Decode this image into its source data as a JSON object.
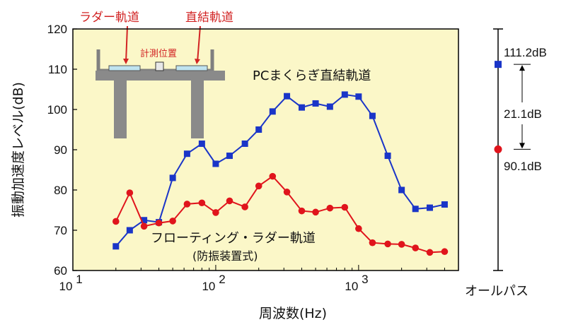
{
  "chart_data": {
    "type": "line",
    "xscale": "log",
    "xlim": [
      10,
      5000
    ],
    "ylim": [
      60,
      120
    ],
    "xlabel": "周波数(Hz)",
    "ylabel": "振動加速度レベル(dB)",
    "x_ticks": [
      {
        "value": 10,
        "base": "10",
        "exp": "1"
      },
      {
        "value": 100,
        "base": "10",
        "exp": "2"
      },
      {
        "value": 1000,
        "base": "10",
        "exp": "3"
      }
    ],
    "y_ticks": [
      60,
      70,
      80,
      90,
      100,
      110,
      120
    ],
    "series": [
      {
        "name": "PCまくらぎ直結軌道",
        "color": "#1a35c8",
        "marker": "square",
        "x": [
          20,
          25,
          31.5,
          40,
          50,
          63,
          80,
          100,
          125,
          160,
          200,
          250,
          315,
          400,
          500,
          630,
          800,
          1000,
          1250,
          1600,
          2000,
          2500,
          3150,
          4000
        ],
        "values": [
          66,
          70,
          72.5,
          72,
          83,
          89,
          91.5,
          86.5,
          88.5,
          91.5,
          95,
          99.5,
          103.3,
          100.5,
          101.5,
          100.7,
          103.7,
          103.2,
          98.4,
          88.5,
          80,
          75.3,
          75.6,
          76.4
        ]
      },
      {
        "name": "フローティング・ラダー軌道",
        "sublabel": "(防振装置式)",
        "color": "#e0141c",
        "marker": "circle",
        "x": [
          20,
          25,
          31.5,
          40,
          50,
          63,
          80,
          100,
          125,
          160,
          200,
          250,
          315,
          400,
          500,
          630,
          800,
          1000,
          1250,
          1600,
          2000,
          2500,
          3150,
          4000
        ],
        "values": [
          72.2,
          79.3,
          71,
          71.8,
          72.3,
          76.5,
          76.8,
          74.4,
          77.3,
          75.8,
          81,
          83.4,
          79.5,
          74.8,
          74.5,
          75.5,
          75.7,
          70.4,
          66.9,
          66.6,
          66.5,
          65.6,
          64.5,
          64.7
        ]
      }
    ],
    "overall": {
      "label": "オールパス",
      "top_value": 111.2,
      "top_label": "111.2dB",
      "bottom_value": 90.1,
      "bottom_label": "90.1dB",
      "diff_label": "21.1dB"
    },
    "inset": {
      "label_ladder": "ラダー軌道",
      "label_direct": "直結軌道",
      "label_measure": "計測位置"
    }
  },
  "colors": {
    "plot_bg": "#fbf7c8",
    "label_red": "#d22424"
  }
}
